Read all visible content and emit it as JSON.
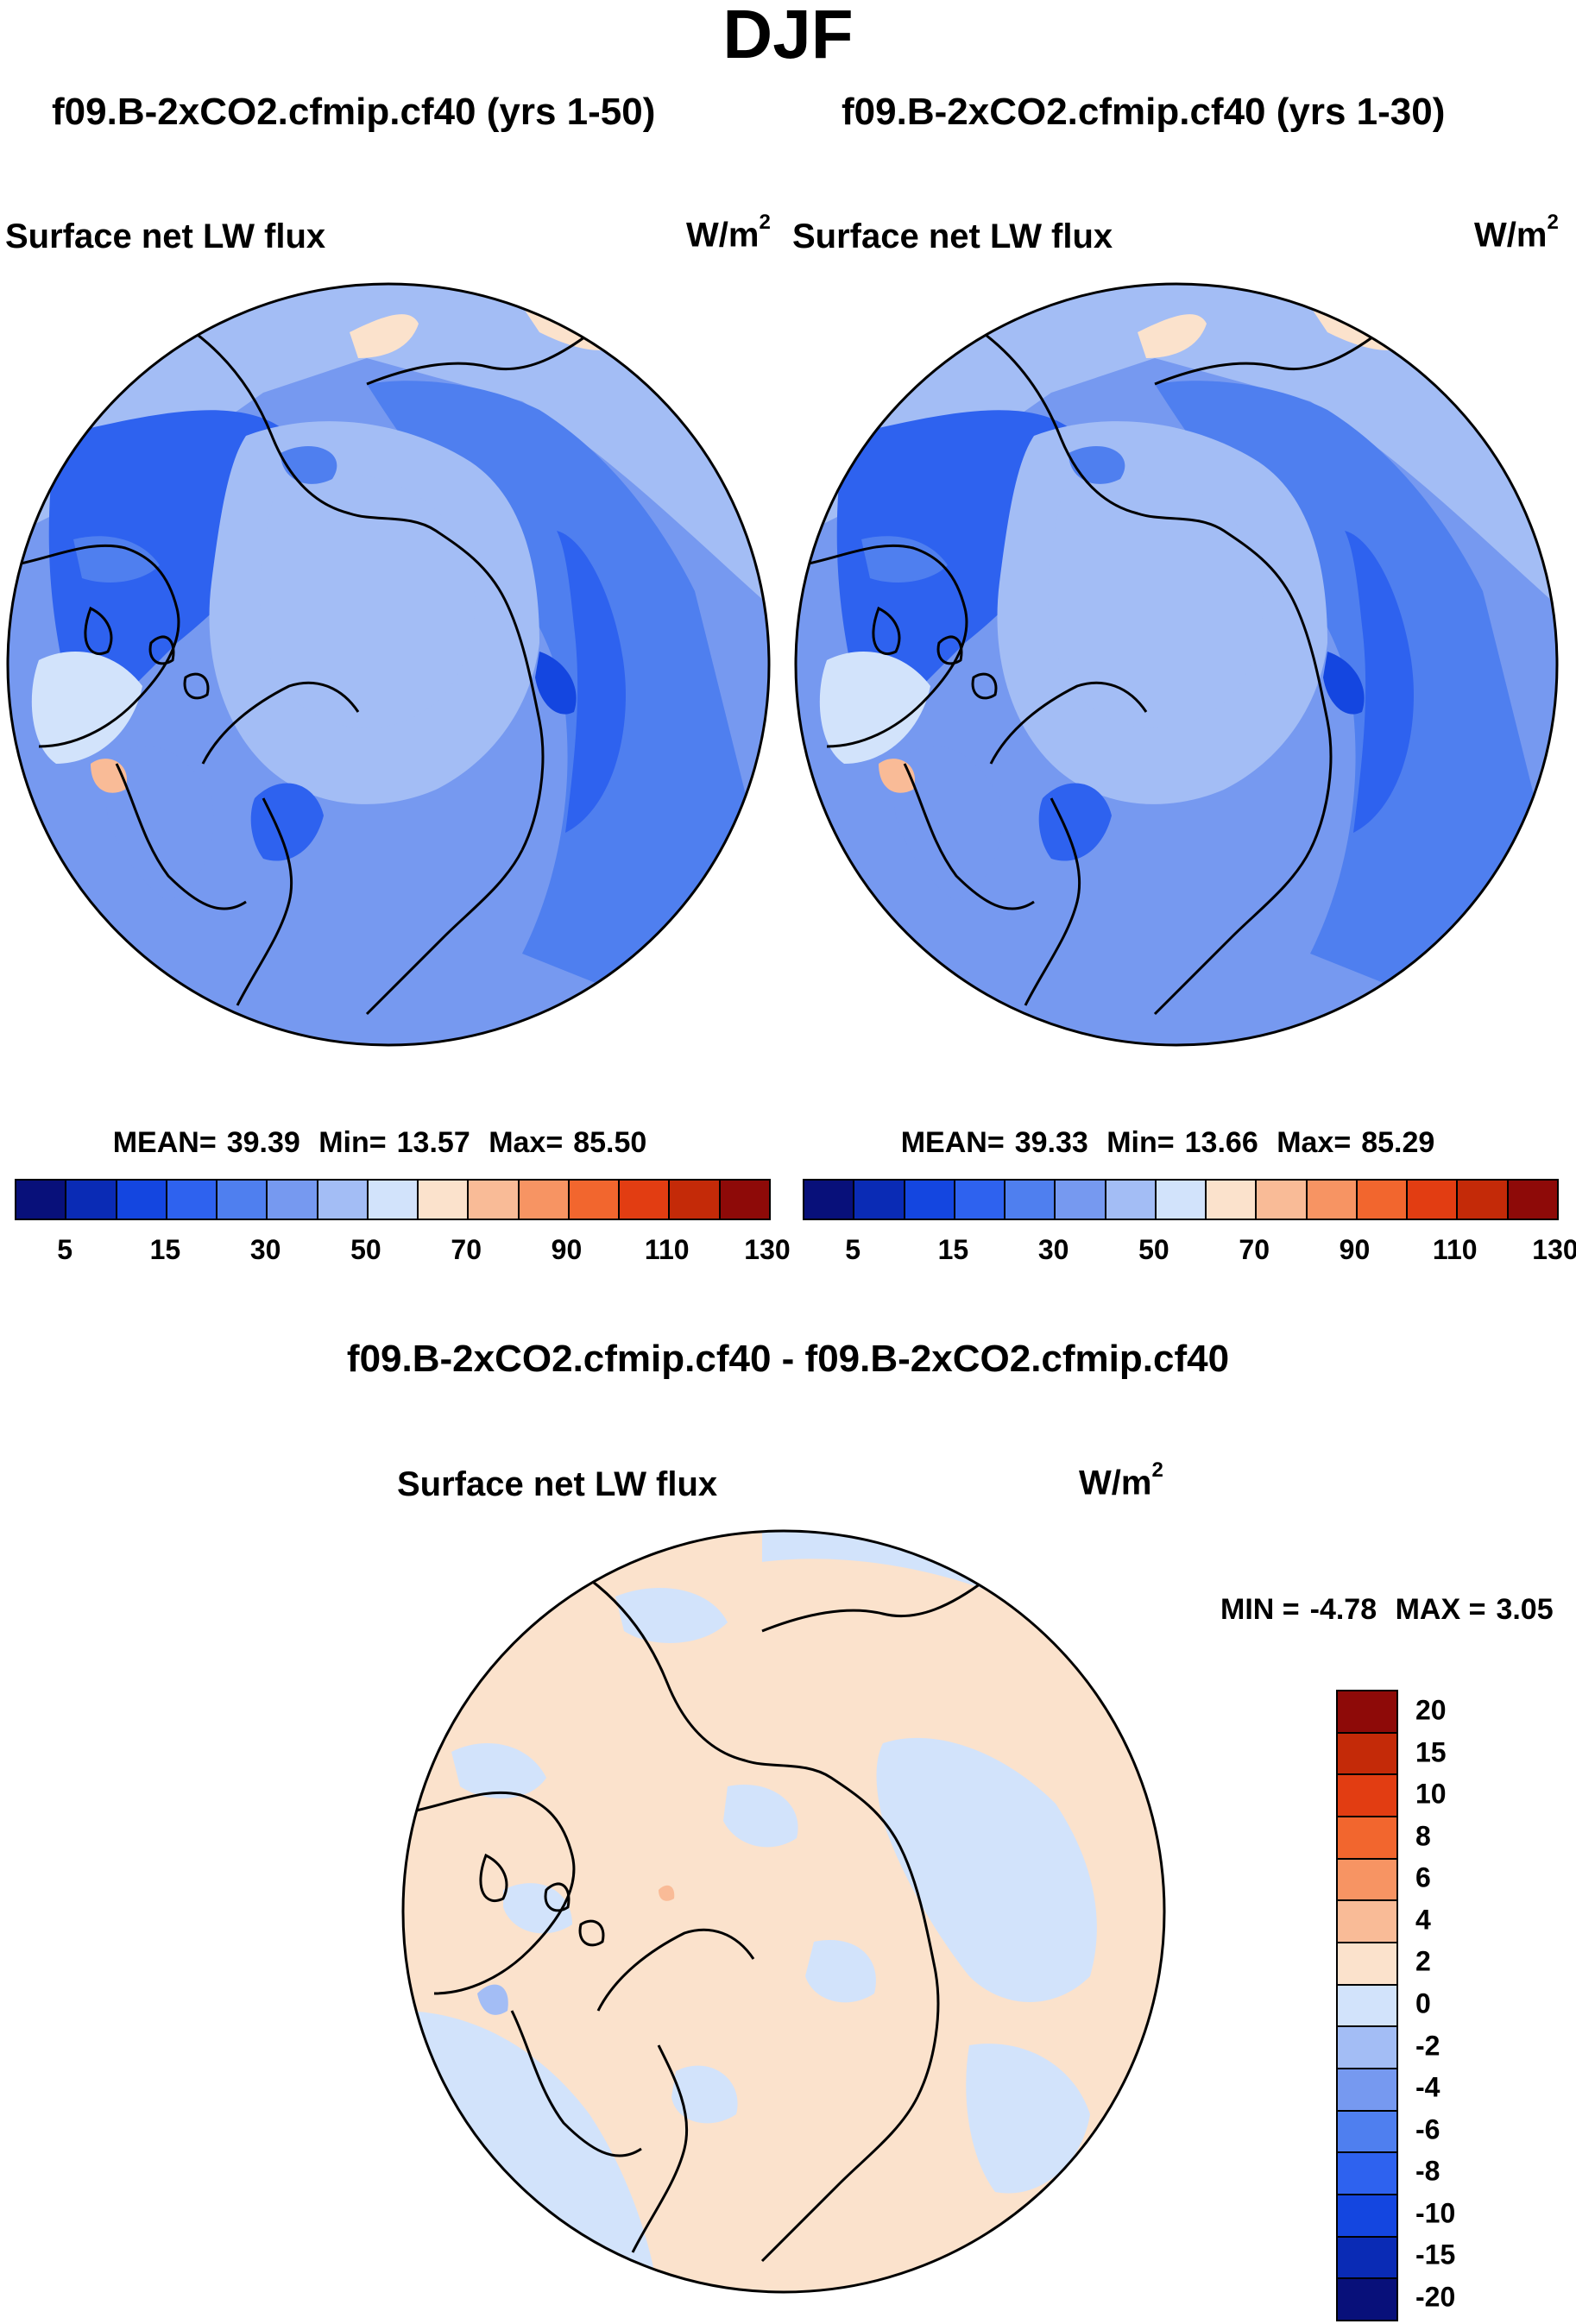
{
  "figure_title": "DJF",
  "panels": [
    {
      "case_title": "f09.B-2xCO2.cfmip.cf40 (yrs 1-50)",
      "variable": "Surface net LW flux",
      "units": "W/m",
      "units_exp": "2",
      "mean_label": "MEAN=",
      "mean": "39.39",
      "min_label": "Min=",
      "min": "13.57",
      "max_label": "Max=",
      "max": "85.50"
    },
    {
      "case_title": "f09.B-2xCO2.cfmip.cf40 (yrs 1-30)",
      "variable": "Surface net LW flux",
      "units": "W/m",
      "units_exp": "2",
      "mean_label": "MEAN=",
      "mean": "39.33",
      "min_label": "Min=",
      "min": "13.66",
      "max_label": "Max=",
      "max": "85.29"
    }
  ],
  "main_colorbar": {
    "colors": [
      "#08107a",
      "#0a2bb5",
      "#1446e0",
      "#2e62ef",
      "#4f7fef",
      "#7699f0",
      "#a3bdf5",
      "#d2e3fb",
      "#fbe2cc",
      "#f9bb97",
      "#f79463",
      "#f2662e",
      "#e23d12",
      "#c42a08",
      "#8e0a08"
    ],
    "tick_labels": [
      "5",
      "15",
      "30",
      "50",
      "70",
      "90",
      "110",
      "130"
    ]
  },
  "difference_panel": {
    "case_title": "f09.B-2xCO2.cfmip.cf40 - f09.B-2xCO2.cfmip.cf40",
    "variable": "Surface net LW flux",
    "units": "W/m",
    "units_exp": "2",
    "min_label": "MIN =",
    "min": "-4.78",
    "max_label": "MAX =",
    "max": "3.05"
  },
  "diff_colorbar": {
    "colors": [
      "#8e0a08",
      "#c42a08",
      "#e23d12",
      "#f2662e",
      "#f79463",
      "#f9bb97",
      "#fbe2cc",
      "#d2e3fb",
      "#a3bdf5",
      "#7699f0",
      "#4f7fef",
      "#2e62ef",
      "#1446e0",
      "#0a2bb5",
      "#08107a"
    ],
    "tick_labels": [
      "20",
      "15",
      "10",
      "8",
      "6",
      "4",
      "2",
      "0",
      "-2",
      "-4",
      "-6",
      "-8",
      "-10",
      "-15",
      "-20"
    ]
  },
  "chart_data": [
    {
      "type": "heatmap",
      "title": "Surface net LW flux",
      "subtitle": "f09.B-2xCO2.cfmip.cf40 (yrs 1-50)",
      "projection": "north polar stereographic",
      "units": "W/m2",
      "levels": [
        5,
        10,
        15,
        20,
        30,
        40,
        50,
        60,
        70,
        80,
        90,
        100,
        110,
        120,
        130
      ],
      "mean": 39.39,
      "min": 13.57,
      "max": 85.5
    },
    {
      "type": "heatmap",
      "title": "Surface net LW flux",
      "subtitle": "f09.B-2xCO2.cfmip.cf40 (yrs 1-30)",
      "projection": "north polar stereographic",
      "units": "W/m2",
      "levels": [
        5,
        10,
        15,
        20,
        30,
        40,
        50,
        60,
        70,
        80,
        90,
        100,
        110,
        120,
        130
      ],
      "mean": 39.33,
      "min": 13.66,
      "max": 85.29
    },
    {
      "type": "heatmap",
      "title": "Surface net LW flux",
      "subtitle": "f09.B-2xCO2.cfmip.cf40 - f09.B-2xCO2.cfmip.cf40",
      "projection": "north polar stereographic",
      "units": "W/m2",
      "levels": [
        -20,
        -15,
        -10,
        -8,
        -6,
        -4,
        -2,
        0,
        2,
        4,
        6,
        8,
        10,
        15,
        20
      ],
      "min": -4.78,
      "max": 3.05
    }
  ]
}
